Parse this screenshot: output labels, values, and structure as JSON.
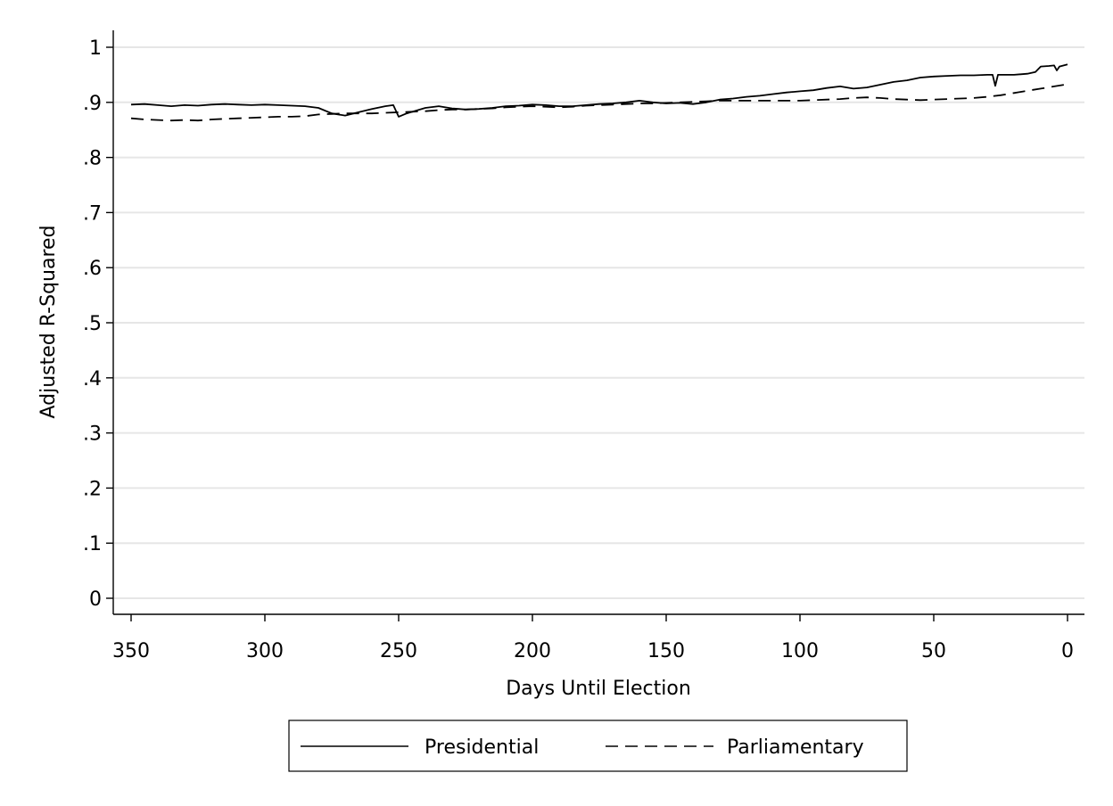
{
  "chart_data": {
    "type": "line",
    "title": "",
    "xlabel": "Days Until Election",
    "ylabel": "Adjusted R-Squared",
    "xlim": [
      0,
      350
    ],
    "x_reversed": true,
    "ylim": [
      0,
      1
    ],
    "x_ticks": [
      "350",
      "300",
      "250",
      "200",
      "150",
      "100",
      "50",
      "0"
    ],
    "y_ticks": [
      "0",
      ".1",
      ".2",
      ".3",
      ".4",
      ".5",
      ".6",
      ".7",
      ".8",
      ".9",
      "1"
    ],
    "grid": true,
    "legend_placement": "bottom",
    "series": [
      {
        "name": "Presidential",
        "style": "solid",
        "color": "#000000",
        "points": [
          [
            350,
            0.896
          ],
          [
            345,
            0.897
          ],
          [
            340,
            0.895
          ],
          [
            335,
            0.893
          ],
          [
            330,
            0.895
          ],
          [
            325,
            0.894
          ],
          [
            320,
            0.896
          ],
          [
            315,
            0.897
          ],
          [
            310,
            0.896
          ],
          [
            305,
            0.895
          ],
          [
            300,
            0.896
          ],
          [
            295,
            0.895
          ],
          [
            290,
            0.894
          ],
          [
            285,
            0.893
          ],
          [
            280,
            0.89
          ],
          [
            275,
            0.88
          ],
          [
            270,
            0.876
          ],
          [
            265,
            0.882
          ],
          [
            260,
            0.888
          ],
          [
            255,
            0.893
          ],
          [
            252,
            0.895
          ],
          [
            250,
            0.874
          ],
          [
            247,
            0.88
          ],
          [
            240,
            0.89
          ],
          [
            235,
            0.893
          ],
          [
            230,
            0.889
          ],
          [
            225,
            0.887
          ],
          [
            220,
            0.888
          ],
          [
            215,
            0.89
          ],
          [
            210,
            0.893
          ],
          [
            205,
            0.894
          ],
          [
            200,
            0.896
          ],
          [
            195,
            0.895
          ],
          [
            190,
            0.893
          ],
          [
            185,
            0.893
          ],
          [
            180,
            0.895
          ],
          [
            175,
            0.897
          ],
          [
            170,
            0.898
          ],
          [
            165,
            0.9
          ],
          [
            160,
            0.903
          ],
          [
            155,
            0.9
          ],
          [
            150,
            0.898
          ],
          [
            145,
            0.899
          ],
          [
            140,
            0.897
          ],
          [
            135,
            0.9
          ],
          [
            130,
            0.905
          ],
          [
            125,
            0.907
          ],
          [
            120,
            0.91
          ],
          [
            115,
            0.912
          ],
          [
            110,
            0.915
          ],
          [
            105,
            0.918
          ],
          [
            100,
            0.92
          ],
          [
            95,
            0.922
          ],
          [
            90,
            0.926
          ],
          [
            85,
            0.929
          ],
          [
            80,
            0.925
          ],
          [
            75,
            0.927
          ],
          [
            70,
            0.932
          ],
          [
            65,
            0.937
          ],
          [
            60,
            0.94
          ],
          [
            55,
            0.945
          ],
          [
            50,
            0.947
          ],
          [
            45,
            0.948
          ],
          [
            40,
            0.949
          ],
          [
            35,
            0.949
          ],
          [
            30,
            0.95
          ],
          [
            28,
            0.95
          ],
          [
            27,
            0.93
          ],
          [
            26,
            0.95
          ],
          [
            20,
            0.95
          ],
          [
            15,
            0.952
          ],
          [
            12,
            0.955
          ],
          [
            10,
            0.965
          ],
          [
            7,
            0.966
          ],
          [
            5,
            0.967
          ],
          [
            4,
            0.958
          ],
          [
            3,
            0.965
          ],
          [
            0,
            0.969
          ]
        ]
      },
      {
        "name": "Parliamentary",
        "style": "dashed",
        "color": "#000000",
        "points": [
          [
            350,
            0.871
          ],
          [
            345,
            0.869
          ],
          [
            340,
            0.868
          ],
          [
            335,
            0.867
          ],
          [
            330,
            0.868
          ],
          [
            325,
            0.867
          ],
          [
            320,
            0.869
          ],
          [
            315,
            0.87
          ],
          [
            310,
            0.871
          ],
          [
            305,
            0.872
          ],
          [
            300,
            0.873
          ],
          [
            295,
            0.874
          ],
          [
            290,
            0.874
          ],
          [
            285,
            0.875
          ],
          [
            280,
            0.878
          ],
          [
            275,
            0.879
          ],
          [
            270,
            0.88
          ],
          [
            265,
            0.88
          ],
          [
            260,
            0.88
          ],
          [
            255,
            0.881
          ],
          [
            250,
            0.882
          ],
          [
            245,
            0.883
          ],
          [
            240,
            0.884
          ],
          [
            235,
            0.886
          ],
          [
            230,
            0.887
          ],
          [
            225,
            0.887
          ],
          [
            220,
            0.888
          ],
          [
            215,
            0.889
          ],
          [
            210,
            0.891
          ],
          [
            205,
            0.892
          ],
          [
            200,
            0.893
          ],
          [
            195,
            0.892
          ],
          [
            190,
            0.891
          ],
          [
            185,
            0.892
          ],
          [
            180,
            0.894
          ],
          [
            175,
            0.895
          ],
          [
            170,
            0.896
          ],
          [
            165,
            0.897
          ],
          [
            160,
            0.898
          ],
          [
            155,
            0.898
          ],
          [
            150,
            0.899
          ],
          [
            145,
            0.9
          ],
          [
            140,
            0.901
          ],
          [
            135,
            0.902
          ],
          [
            130,
            0.903
          ],
          [
            125,
            0.903
          ],
          [
            120,
            0.903
          ],
          [
            115,
            0.903
          ],
          [
            110,
            0.903
          ],
          [
            105,
            0.903
          ],
          [
            100,
            0.903
          ],
          [
            95,
            0.904
          ],
          [
            90,
            0.905
          ],
          [
            85,
            0.906
          ],
          [
            80,
            0.908
          ],
          [
            75,
            0.909
          ],
          [
            70,
            0.908
          ],
          [
            65,
            0.906
          ],
          [
            60,
            0.905
          ],
          [
            55,
            0.904
          ],
          [
            50,
            0.905
          ],
          [
            45,
            0.906
          ],
          [
            40,
            0.907
          ],
          [
            35,
            0.908
          ],
          [
            30,
            0.91
          ],
          [
            25,
            0.913
          ],
          [
            20,
            0.917
          ],
          [
            15,
            0.921
          ],
          [
            10,
            0.925
          ],
          [
            5,
            0.929
          ],
          [
            0,
            0.933
          ]
        ]
      }
    ]
  }
}
